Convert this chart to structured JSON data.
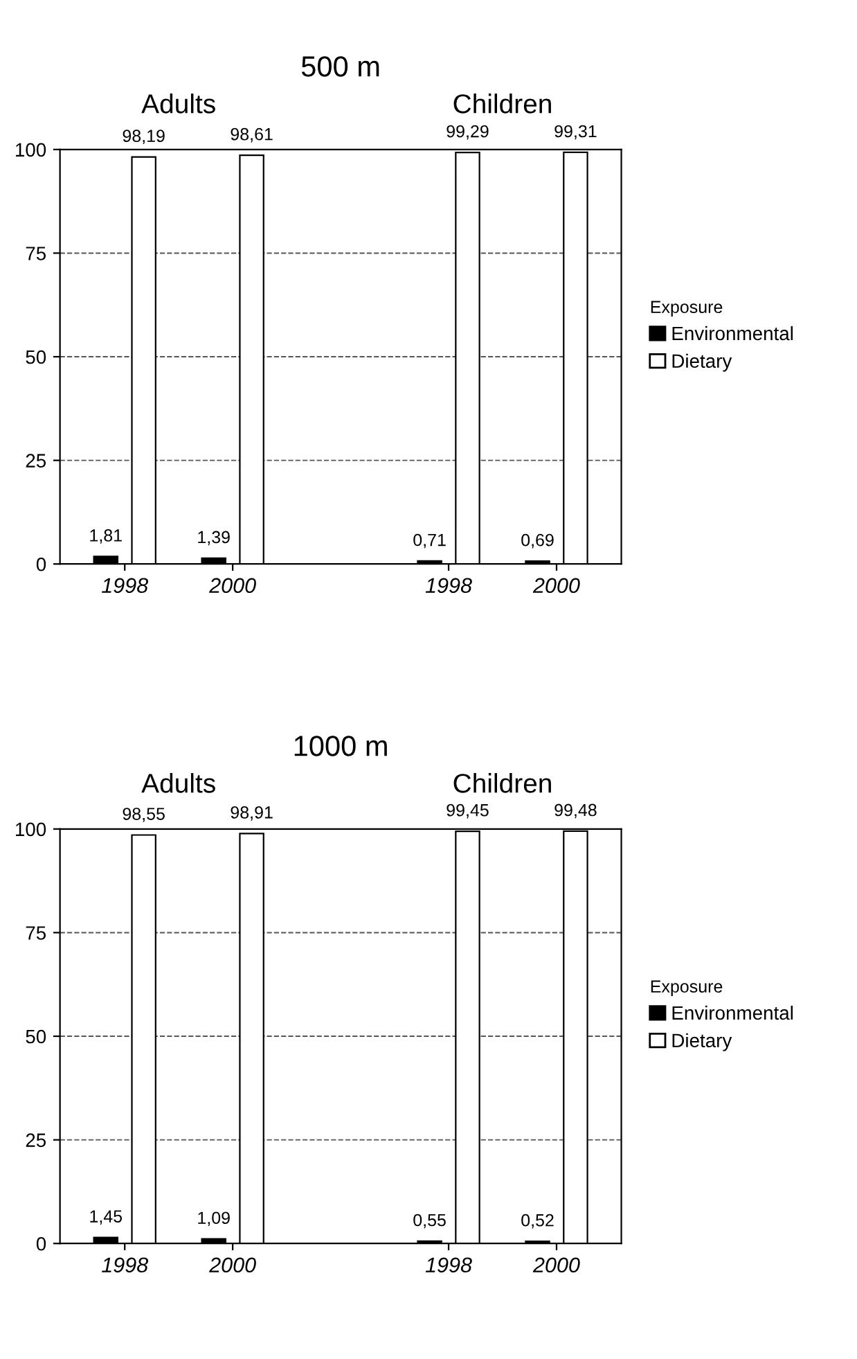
{
  "chart_data": [
    {
      "type": "bar",
      "title": "500 m",
      "annotations": [
        "Adults",
        "Children"
      ],
      "categories": [
        "1998",
        "2000",
        null,
        "1998",
        "2000"
      ],
      "series": [
        {
          "name": "Environmental",
          "color": "#000000",
          "values": [
            1.81,
            1.39,
            null,
            0.71,
            0.69
          ],
          "value_labels": [
            "1,81",
            "1,39",
            null,
            "0,71",
            "0,69"
          ]
        },
        {
          "name": "Dietary",
          "color": "#ffffff",
          "values": [
            98.19,
            98.61,
            null,
            99.29,
            99.31
          ],
          "value_labels": [
            "98,19",
            "98,61",
            null,
            "99,29",
            "99,31"
          ]
        }
      ],
      "ylim": [
        0,
        100
      ],
      "yticks": [
        0,
        25,
        50,
        75,
        100
      ],
      "grid": "y",
      "legend": "right",
      "legend_title": "Exposure"
    },
    {
      "type": "bar",
      "title": "1000 m",
      "annotations": [
        "Adults",
        "Children"
      ],
      "categories": [
        "1998",
        "2000",
        null,
        "1998",
        "2000"
      ],
      "series": [
        {
          "name": "Environmental",
          "color": "#000000",
          "values": [
            1.45,
            1.09,
            null,
            0.55,
            0.52
          ],
          "value_labels": [
            "1,45",
            "1,09",
            null,
            "0,55",
            "0,52"
          ]
        },
        {
          "name": "Dietary",
          "color": "#ffffff",
          "values": [
            98.55,
            98.91,
            null,
            99.45,
            99.48
          ],
          "value_labels": [
            "98,55",
            "98,91",
            null,
            "99,45",
            "99,48"
          ]
        }
      ],
      "ylim": [
        0,
        100
      ],
      "yticks": [
        0,
        25,
        50,
        75,
        100
      ],
      "grid": "y",
      "legend": "right",
      "legend_title": "Exposure"
    }
  ]
}
